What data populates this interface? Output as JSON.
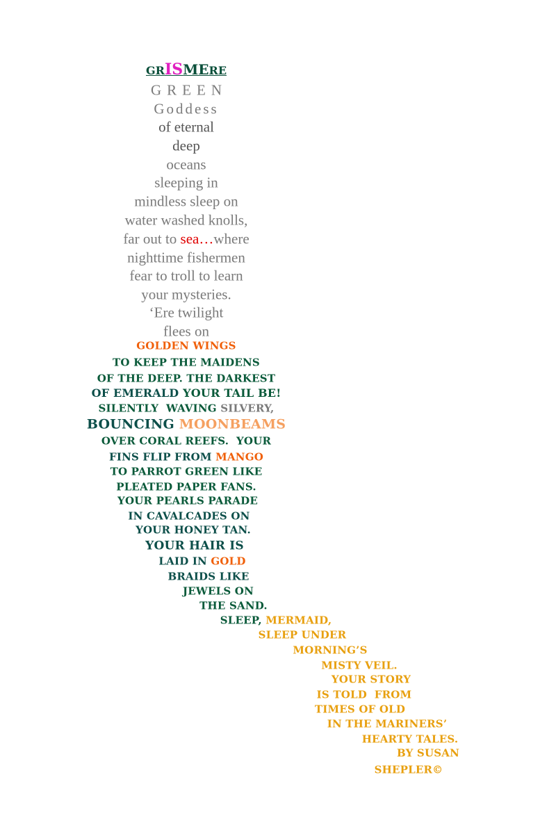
{
  "title": {
    "segments": [
      {
        "text": "GR",
        "color": "#0a4f3a"
      },
      {
        "text": "IS",
        "color": "#e020c0"
      },
      {
        "text": "ME",
        "color": "#0a4f3a"
      },
      {
        "text": "RE",
        "color": "#0a4f3a"
      }
    ]
  },
  "serif_lines": [
    {
      "segments": [
        {
          "text": "GREEN",
          "color": "#7a7a7a"
        }
      ]
    },
    {
      "segments": [
        {
          "text": "Goddess",
          "color": "#7a7a7a"
        }
      ]
    },
    {
      "segments": [
        {
          "text": "of eternal",
          "color": "#555555"
        }
      ]
    },
    {
      "segments": [
        {
          "text": "deep",
          "color": "#555555"
        }
      ]
    },
    {
      "segments": [
        {
          "text": "oceans",
          "color": "#7a7a7a"
        }
      ]
    },
    {
      "segments": [
        {
          "text": "sleeping in",
          "color": "#7a7a7a"
        }
      ]
    },
    {
      "segments": [
        {
          "text": "mindless sleep on",
          "color": "#7a7a7a"
        }
      ]
    },
    {
      "segments": [
        {
          "text": "water washed knolls,",
          "color": "#7a7a7a"
        }
      ]
    },
    {
      "segments": [
        {
          "text": "far out to ",
          "color": "#7a7a7a"
        },
        {
          "text": "sea…",
          "color": "#e00000"
        },
        {
          "text": "where",
          "color": "#7a7a7a"
        }
      ]
    },
    {
      "segments": [
        {
          "text": "nighttime fishermen",
          "color": "#7a7a7a"
        }
      ]
    },
    {
      "segments": [
        {
          "text": "fear to troll to learn",
          "color": "#7a7a7a"
        }
      ]
    },
    {
      "segments": [
        {
          "text": "your mysteries.",
          "color": "#7a7a7a"
        }
      ]
    },
    {
      "segments": [
        {
          "text": "‘Ere twilight",
          "color": "#7a7a7a"
        }
      ]
    },
    {
      "segments": [
        {
          "text": "flees on",
          "color": "#7a7a7a"
        }
      ]
    }
  ],
  "display_lines": [
    {
      "segments": [
        {
          "text": "GOLDEN WINGS",
          "color": "#f0600a"
        }
      ]
    },
    {
      "segments": [
        {
          "text": "TO KEEP THE MAIDENS",
          "color": "#0a5a3a"
        }
      ]
    },
    {
      "segments": [
        {
          "text": "OF THE DEEP. THE DARKEST",
          "color": "#0a5a3a"
        }
      ]
    },
    {
      "segments": [
        {
          "text": "OF EMERALD",
          "color": "#0d4f4a"
        },
        {
          "text": " YOUR TAIL BE!",
          "color": "#0a5a3a"
        }
      ]
    },
    {
      "segments": [
        {
          "text": "SILENTLY  WAVING ",
          "color": "#0a5a3a"
        },
        {
          "text": "SILVERY,",
          "color": "#7a7a7a"
        }
      ]
    },
    {
      "segments": [
        {
          "text": "BOUNCING ",
          "color": "#0d4f4a"
        },
        {
          "text": "MOONBEAMS",
          "color": "#f5a060"
        }
      ]
    },
    {
      "segments": [
        {
          "text": "OVER CORAL REEFS.  YOUR",
          "color": "#0a5a3a"
        }
      ]
    },
    {
      "segments": [
        {
          "text": "FINS FLIP FROM ",
          "color": "#0d4f4a"
        },
        {
          "text": "MANGO",
          "color": "#f0600a"
        }
      ]
    },
    {
      "segments": [
        {
          "text": "TO PARROT GREEN LIKE",
          "color": "#0a5a3a"
        }
      ]
    },
    {
      "segments": [
        {
          "text": "PLEATED PAPER FANS.",
          "color": "#0a5a3a"
        }
      ]
    },
    {
      "segments": [
        {
          "text": "YOUR PEARLS PARADE",
          "color": "#0a5a3a"
        }
      ]
    },
    {
      "segments": [
        {
          "text": "IN CAVALCADES ON",
          "color": "#0d4f4a"
        }
      ]
    },
    {
      "segments": [
        {
          "text": "YOUR HONEY TAN.",
          "color": "#0d4f4a"
        }
      ]
    },
    {
      "segments": [
        {
          "text": "YOUR HAIR IS",
          "color": "#0d4f4a"
        }
      ]
    },
    {
      "segments": [
        {
          "text": "LAID IN ",
          "color": "#0d4f4a"
        },
        {
          "text": "GOLD",
          "color": "#f0600a"
        }
      ]
    },
    {
      "segments": [
        {
          "text": "BRAIDS LIKE",
          "color": "#0d4f4a"
        }
      ]
    },
    {
      "segments": [
        {
          "text": "JEWELS ON",
          "color": "#0a5a3a"
        }
      ]
    },
    {
      "segments": [
        {
          "text": "THE SAND.",
          "color": "#0a5a3a"
        }
      ]
    },
    {
      "segments": [
        {
          "text": "SLEEP, ",
          "color": "#0a5a3a"
        },
        {
          "text": "MERMAID,",
          "color": "#e8a010"
        }
      ]
    },
    {
      "segments": [
        {
          "text": "SLEEP UNDER",
          "color": "#e8a010"
        }
      ]
    },
    {
      "segments": [
        {
          "text": "MORNING’S",
          "color": "#e8a010"
        }
      ]
    },
    {
      "segments": [
        {
          "text": "MISTY VEIL.",
          "color": "#e8a010"
        }
      ]
    },
    {
      "segments": [
        {
          "text": "YOUR STORY",
          "color": "#e8a010"
        }
      ]
    },
    {
      "segments": [
        {
          "text": "IS TOLD  FROM",
          "color": "#e8a010"
        }
      ]
    },
    {
      "segments": [
        {
          "text": "TIMES OF OLD",
          "color": "#e8a010"
        }
      ]
    },
    {
      "segments": [
        {
          "text": "IN THE MARINERS’",
          "color": "#e8a010"
        }
      ]
    },
    {
      "segments": [
        {
          "text": "HEARTY TALES.",
          "color": "#e8a010"
        }
      ]
    },
    {
      "segments": [
        {
          "text": "BY SUSAN",
          "color": "#e8a010"
        }
      ]
    },
    {
      "segments": [
        {
          "text": "SHEPLER©",
          "color": "#e8a010"
        }
      ]
    }
  ]
}
